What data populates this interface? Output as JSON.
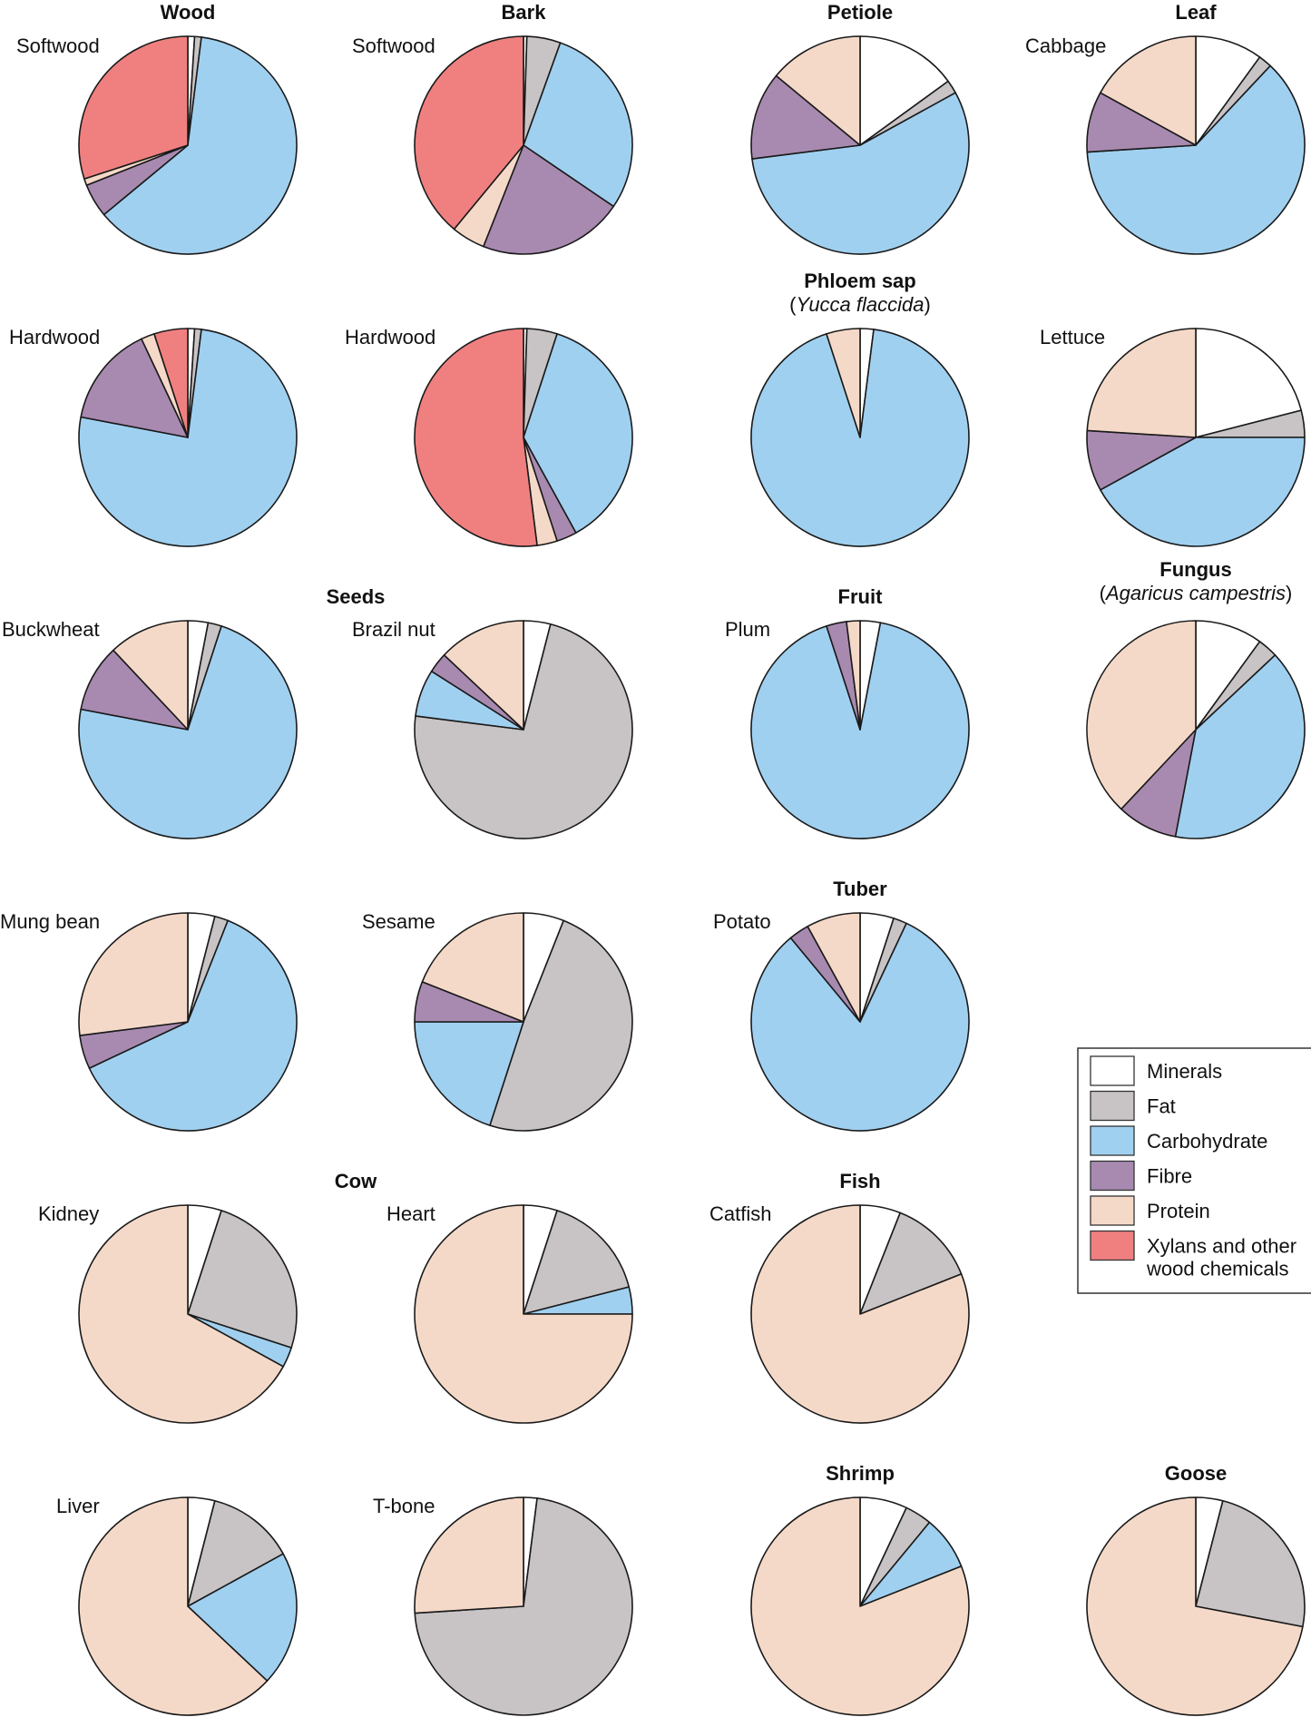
{
  "category_colors": {
    "Minerals": "#ffffff",
    "Fat": "#c8c3c4",
    "Carbohydrate": "#a0d0f0",
    "Fibre": "#a88ab0",
    "Protein": "#f5d9c8",
    "Xylans and other wood chemicals": "#f08080"
  },
  "legend": {
    "items": [
      {
        "key": "Minerals",
        "label": "Minerals"
      },
      {
        "key": "Fat",
        "label": "Fat"
      },
      {
        "key": "Carbohydrate",
        "label": "Carbohydrate"
      },
      {
        "key": "Fibre",
        "label": "Fibre"
      },
      {
        "key": "Protein",
        "label": "Protein"
      },
      {
        "key": "Xylans and other wood chemicals",
        "label1": "Xylans and other",
        "label2": "wood chemicals"
      }
    ]
  },
  "headers": {
    "wood": "Wood",
    "bark": "Bark",
    "petiole": "Petiole",
    "leaf": "Leaf",
    "phloem": "Phloem sap",
    "phloem_sub": "Yucca flaccida",
    "seeds": "Seeds",
    "fruit": "Fruit",
    "fungus": "Fungus",
    "fungus_sub": "Agaricus campestris",
    "tuber": "Tuber",
    "cow": "Cow",
    "fish": "Fish",
    "shrimp": "Shrimp",
    "goose": "Goose"
  },
  "chart_data": {
    "type": "pie",
    "title": "",
    "slice_order": [
      "Minerals",
      "Fat",
      "Carbohydrate",
      "Fibre",
      "Protein",
      "Xylans and other wood chemicals"
    ],
    "start": "12 o'clock, clockwise",
    "charts": [
      {
        "label": "Softwood",
        "group": "Wood",
        "values": {
          "Minerals": 1,
          "Fat": 1,
          "Carbohydrate": 62,
          "Fibre": 5,
          "Protein": 1,
          "Xylans and other wood chemicals": 30
        }
      },
      {
        "label": "Softwood",
        "group": "Bark",
        "values": {
          "Minerals": 0.5,
          "Fat": 5,
          "Carbohydrate": 29,
          "Fibre": 21.5,
          "Protein": 5,
          "Xylans and other wood chemicals": 39
        }
      },
      {
        "label": "",
        "group": "Petiole",
        "values": {
          "Minerals": 15,
          "Fat": 2,
          "Carbohydrate": 56,
          "Fibre": 13,
          "Protein": 14
        }
      },
      {
        "label": "Cabbage",
        "group": "Leaf",
        "values": {
          "Minerals": 10,
          "Fat": 2,
          "Carbohydrate": 62,
          "Fibre": 9,
          "Protein": 17
        }
      },
      {
        "label": "Hardwood",
        "group": "Wood",
        "values": {
          "Minerals": 1,
          "Fat": 1,
          "Carbohydrate": 76,
          "Fibre": 15,
          "Protein": 2,
          "Xylans and other wood chemicals": 5
        }
      },
      {
        "label": "Hardwood",
        "group": "Bark",
        "values": {
          "Minerals": 0.5,
          "Fat": 4.5,
          "Carbohydrate": 37,
          "Fibre": 3,
          "Protein": 3,
          "Xylans and other wood chemicals": 52
        }
      },
      {
        "label": "",
        "group": "Phloem sap",
        "values": {
          "Minerals": 2,
          "Carbohydrate": 93,
          "Protein": 5
        }
      },
      {
        "label": "Lettuce",
        "group": "Leaf",
        "values": {
          "Minerals": 21,
          "Fat": 4,
          "Carbohydrate": 42,
          "Fibre": 9,
          "Protein": 24
        }
      },
      {
        "label": "Buckwheat",
        "group": "Seeds",
        "values": {
          "Minerals": 3,
          "Fat": 2,
          "Carbohydrate": 73,
          "Fibre": 10,
          "Protein": 12
        }
      },
      {
        "label": "Brazil nut",
        "group": "Seeds",
        "values": {
          "Minerals": 4,
          "Fat": 73,
          "Carbohydrate": 7,
          "Fibre": 3,
          "Protein": 13
        }
      },
      {
        "label": "Plum",
        "group": "Fruit",
        "values": {
          "Minerals": 3,
          "Carbohydrate": 92,
          "Fibre": 3,
          "Protein": 2
        }
      },
      {
        "label": "",
        "group": "Fungus",
        "values": {
          "Minerals": 10,
          "Fat": 3,
          "Carbohydrate": 40,
          "Fibre": 9,
          "Protein": 38
        }
      },
      {
        "label": "Mung bean",
        "group": "Seeds",
        "values": {
          "Minerals": 4,
          "Fat": 2,
          "Carbohydrate": 62,
          "Fibre": 5,
          "Protein": 27
        }
      },
      {
        "label": "Sesame",
        "group": "Seeds",
        "values": {
          "Minerals": 6,
          "Fat": 49,
          "Carbohydrate": 20,
          "Fibre": 6,
          "Protein": 19
        }
      },
      {
        "label": "Potato",
        "group": "Tuber",
        "values": {
          "Minerals": 5,
          "Fat": 2,
          "Carbohydrate": 82,
          "Fibre": 3,
          "Protein": 8
        }
      },
      {
        "label": "Kidney",
        "group": "Cow",
        "values": {
          "Minerals": 5,
          "Fat": 25,
          "Carbohydrate": 3,
          "Protein": 67
        }
      },
      {
        "label": "Heart",
        "group": "Cow",
        "values": {
          "Minerals": 5,
          "Fat": 16,
          "Carbohydrate": 4,
          "Protein": 75
        }
      },
      {
        "label": "Catfish",
        "group": "Fish",
        "values": {
          "Minerals": 6,
          "Fat": 13,
          "Protein": 81
        }
      },
      {
        "label": "Liver",
        "group": "Cow",
        "values": {
          "Minerals": 4,
          "Fat": 13,
          "Carbohydrate": 20,
          "Protein": 63
        }
      },
      {
        "label": "T-bone",
        "group": "Cow",
        "values": {
          "Minerals": 2,
          "Fat": 72,
          "Protein": 26
        }
      },
      {
        "label": "",
        "group": "Shrimp",
        "values": {
          "Minerals": 7,
          "Fat": 4,
          "Carbohydrate": 8,
          "Protein": 81
        }
      },
      {
        "label": "",
        "group": "Goose",
        "values": {
          "Minerals": 4,
          "Fat": 24,
          "Protein": 72
        }
      }
    ]
  }
}
